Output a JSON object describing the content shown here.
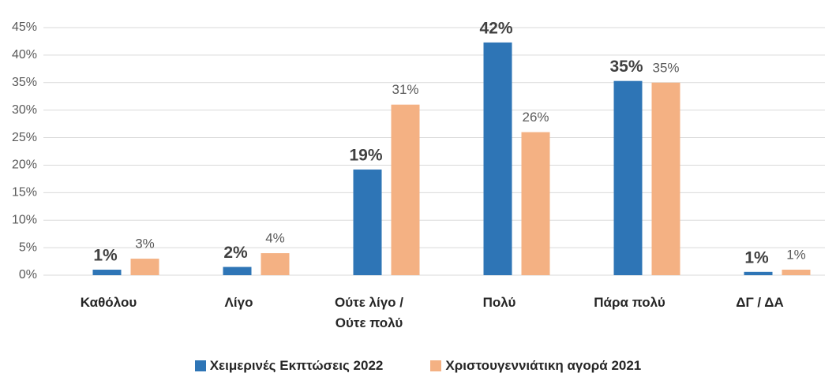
{
  "chart_data": {
    "type": "bar",
    "categories": [
      "Καθόλου",
      "Λίγο",
      "Ούτε λίγο / Ούτε πολύ",
      "Πολύ",
      "Πάρα πολύ",
      "ΔΓ / ΔΑ"
    ],
    "series": [
      {
        "name": "Χειμερινές Εκπτώσεις 2022",
        "color": "#2e75b6",
        "values": [
          1,
          1.5,
          19.2,
          42.3,
          35.3,
          0.6
        ],
        "value_labels": [
          "1%",
          "2%",
          "19%",
          "42%",
          "35%",
          "1%"
        ]
      },
      {
        "name": "Χριστουγεννιάτικη αγορά 2021",
        "color": "#f4b183",
        "values": [
          3,
          4,
          31,
          26,
          35,
          1
        ],
        "value_labels": [
          "3%",
          "4%",
          "31%",
          "26%",
          "35%",
          "1%"
        ]
      }
    ],
    "ylim": [
      0,
      45
    ],
    "yticks": [
      {
        "value": 0,
        "label": "0%"
      },
      {
        "value": 5,
        "label": "5%"
      },
      {
        "value": 10,
        "label": "10%"
      },
      {
        "value": 15,
        "label": "15%"
      },
      {
        "value": 20,
        "label": "20%"
      },
      {
        "value": 25,
        "label": "25%"
      },
      {
        "value": 30,
        "label": "30%"
      },
      {
        "value": 35,
        "label": "35%"
      },
      {
        "value": 40,
        "label": "40%"
      },
      {
        "value": 45,
        "label": "45%"
      }
    ],
    "grid": true,
    "legend": "bottom"
  }
}
